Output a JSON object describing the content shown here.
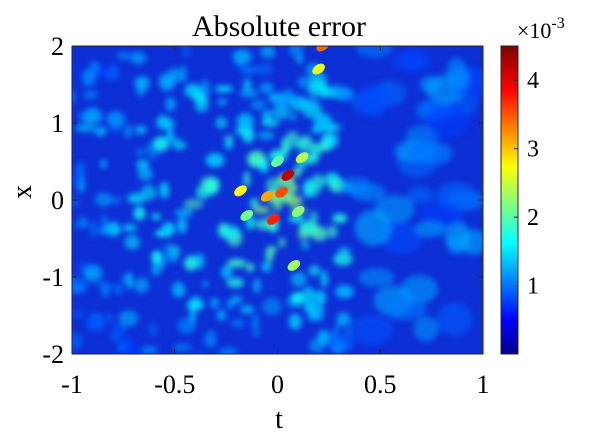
{
  "chart_data": {
    "type": "heatmap",
    "title": "Absolute error",
    "xlabel": "t",
    "ylabel": "x",
    "xlim": [
      -1,
      1
    ],
    "ylim": [
      -2,
      2
    ],
    "x_ticks": [
      {
        "value": -1,
        "label": "-1"
      },
      {
        "value": -0.5,
        "label": "-0.5"
      },
      {
        "value": 0,
        "label": "0"
      },
      {
        "value": 0.5,
        "label": "0.5"
      },
      {
        "value": 1,
        "label": "1"
      }
    ],
    "y_ticks": [
      {
        "value": -2,
        "label": "-2"
      },
      {
        "value": -1,
        "label": "-1"
      },
      {
        "value": 0,
        "label": "0"
      },
      {
        "value": 1,
        "label": "1"
      },
      {
        "value": 2,
        "label": "2"
      }
    ],
    "colorbar": {
      "colormap": "jet",
      "range": [
        0,
        0.0045
      ],
      "exponent_label": "×10",
      "exponent": "-3",
      "ticks": [
        {
          "value": 0.001,
          "label": "1"
        },
        {
          "value": 0.002,
          "label": "2"
        },
        {
          "value": 0.003,
          "label": "3"
        },
        {
          "value": 0.004,
          "label": "4"
        }
      ]
    },
    "hotspots": [
      {
        "t": 0.05,
        "x": 0.32,
        "value": 0.0042
      },
      {
        "t": 0.02,
        "x": 0.1,
        "value": 0.0036
      },
      {
        "t": -0.02,
        "x": -0.25,
        "value": 0.0038
      },
      {
        "t": -0.05,
        "x": 0.05,
        "value": 0.0032
      },
      {
        "t": -0.18,
        "x": 0.12,
        "value": 0.0028
      },
      {
        "t": 0.08,
        "x": -0.85,
        "value": 0.0024
      },
      {
        "t": 0.2,
        "x": 1.7,
        "value": 0.0027
      },
      {
        "t": 0.22,
        "x": 2.0,
        "value": 0.0035
      },
      {
        "t": 0.12,
        "x": 0.55,
        "value": 0.0025
      },
      {
        "t": -0.15,
        "x": -0.2,
        "value": 0.0022
      },
      {
        "t": 0.1,
        "x": -0.15,
        "value": 0.0023
      },
      {
        "t": 0.0,
        "x": 0.5,
        "value": 0.0021
      }
    ]
  }
}
